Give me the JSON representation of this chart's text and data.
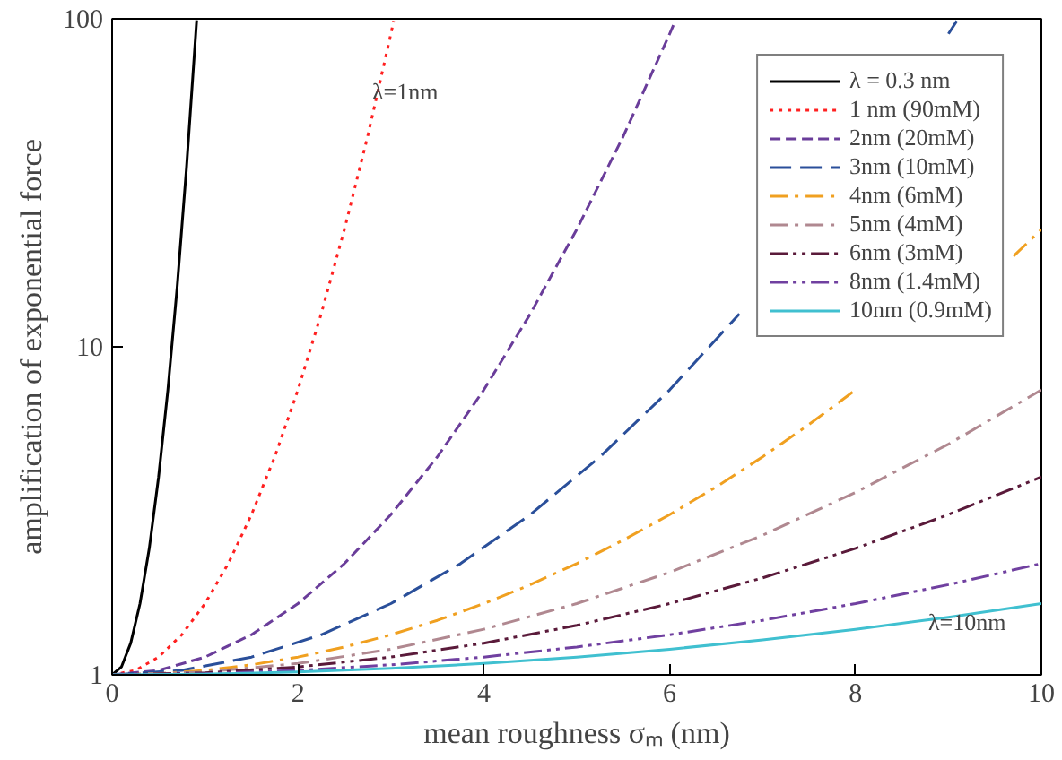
{
  "chart_data": {
    "type": "line",
    "xlabel": "mean roughness σₘ (nm)",
    "ylabel": "amplification of exponential force",
    "xlim": [
      0,
      10
    ],
    "ylim": [
      1,
      100
    ],
    "xticks": [
      0,
      2,
      4,
      6,
      8,
      10
    ],
    "yticks": [
      1,
      10,
      100
    ],
    "log": "y",
    "grid": false,
    "legend": "top right",
    "marker": "none",
    "series": [
      {
        "name": "λ = 0.3 nm",
        "color": "#000000",
        "line_style": "solid",
        "x": [
          0,
          0.1,
          0.2,
          0.3,
          0.4,
          0.5,
          0.6,
          0.7,
          0.8,
          0.9,
          0.91
        ],
        "values": [
          1,
          1.057,
          1.249,
          1.649,
          2.43,
          4.01,
          7.39,
          15.2,
          35.0,
          90.0,
          99
        ]
      },
      {
        "name": "1 nm (90mM)",
        "color": "#ff2020",
        "line_style": "dotted",
        "x": [
          0,
          0.25,
          0.5,
          0.75,
          1,
          1.25,
          1.5,
          1.75,
          2,
          2.25,
          2.5,
          2.75,
          3,
          3.03
        ],
        "values": [
          1,
          1.032,
          1.133,
          1.325,
          1.649,
          2.184,
          3.08,
          4.62,
          7.39,
          12.6,
          22.8,
          43.8,
          90.0,
          98.5
        ]
      },
      {
        "name": "2nm (20mM)",
        "color": "#6a3d9a",
        "line_style": "dashed",
        "x": [
          0,
          0.5,
          1,
          1.5,
          2,
          2.5,
          3,
          3.5,
          4,
          4.5,
          5,
          5.5,
          6,
          6.06
        ],
        "values": [
          1,
          1.032,
          1.133,
          1.325,
          1.649,
          2.184,
          3.08,
          4.62,
          7.39,
          12.6,
          22.8,
          43.8,
          90.0,
          98.5
        ]
      },
      {
        "name": "3nm (10mM)",
        "color": "#2a4f9a",
        "line_style": "longdash",
        "x": [
          0,
          0.75,
          1.5,
          2.25,
          3,
          3.75,
          4.5,
          5.25,
          6,
          6.75,
          7.5,
          8.25,
          9,
          9.09
        ],
        "values": [
          1,
          1.032,
          1.133,
          1.325,
          1.649,
          2.184,
          3.08,
          4.62,
          7.39,
          12.6,
          null,
          null,
          90.0,
          98.5
        ]
      },
      {
        "name": "4nm (6mM)",
        "color": "#f0a020",
        "line_style": "dashdot",
        "x": [
          0,
          0.5,
          1,
          1.5,
          2,
          2.5,
          3,
          3.5,
          4,
          4.5,
          5,
          5.5,
          6,
          6.5,
          7,
          7.5,
          8,
          8.5,
          9,
          9.7,
          10
        ],
        "values": [
          1,
          1.008,
          1.032,
          1.073,
          1.133,
          1.216,
          1.325,
          1.466,
          1.649,
          1.883,
          2.184,
          2.574,
          3.08,
          3.74,
          4.62,
          5.8,
          7.39,
          null,
          null,
          18.9,
          22.8
        ]
      },
      {
        "name": "5nm (4mM)",
        "color": "#b08890",
        "line_style": "dashdot",
        "x": [
          0,
          1,
          2,
          3,
          4,
          5,
          6,
          7,
          8,
          9,
          10
        ],
        "values": [
          1,
          1.02,
          1.083,
          1.197,
          1.377,
          1.649,
          2.054,
          2.664,
          3.6,
          5.05,
          7.39
        ]
      },
      {
        "name": "6nm (3mM)",
        "color": "#5a1a3a",
        "line_style": "dashdotdot",
        "x": [
          0,
          1,
          2,
          3,
          4,
          5,
          6,
          7,
          8,
          9,
          10
        ],
        "values": [
          1,
          1.014,
          1.057,
          1.133,
          1.249,
          1.415,
          1.649,
          1.975,
          2.43,
          3.08,
          4.01
        ]
      },
      {
        "name": "8nm (1.4mM)",
        "color": "#7040a0",
        "line_style": "dashdotdot",
        "x": [
          0,
          1,
          2,
          3,
          4,
          5,
          6,
          7,
          8,
          9,
          10
        ],
        "values": [
          1,
          1.008,
          1.032,
          1.073,
          1.133,
          1.216,
          1.325,
          1.466,
          1.649,
          1.883,
          2.184
        ]
      },
      {
        "name": "10nm (0.9mM)",
        "color": "#40c0d0",
        "line_style": "solid",
        "x": [
          0,
          1,
          2,
          3,
          4,
          5,
          6,
          7,
          8,
          9,
          10
        ],
        "values": [
          1,
          1.005,
          1.02,
          1.046,
          1.083,
          1.133,
          1.197,
          1.278,
          1.377,
          1.499,
          1.649
        ]
      }
    ],
    "annotations": [
      "λ=1nm",
      "λ=10nm"
    ]
  }
}
